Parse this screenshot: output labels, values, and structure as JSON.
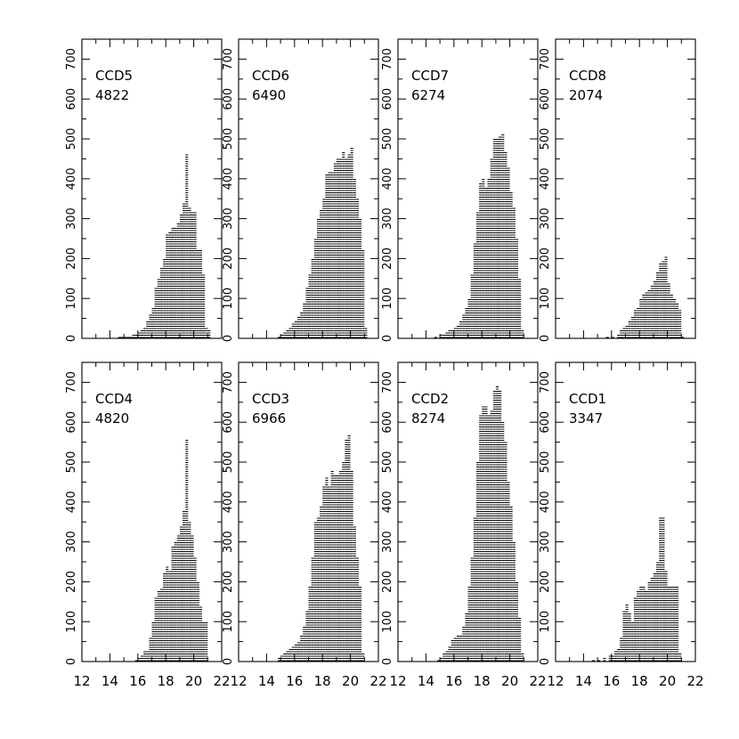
{
  "chart_data": {
    "type": "bar",
    "x_ticks": [
      12,
      14,
      16,
      18,
      20,
      22
    ],
    "y_ticks": [
      0,
      100,
      200,
      300,
      400,
      500,
      600,
      700
    ],
    "xlim": [
      12,
      22
    ],
    "ylim": [
      0,
      750
    ],
    "bin_width": 0.2,
    "panels": [
      {
        "name": "CCD5",
        "count": "4822",
        "bins": [
          [
            14.6,
            5
          ],
          [
            14.8,
            5
          ],
          [
            15.0,
            5
          ],
          [
            15.2,
            5
          ],
          [
            15.4,
            5
          ],
          [
            15.6,
            10
          ],
          [
            15.8,
            10
          ],
          [
            16.0,
            15
          ],
          [
            16.2,
            20
          ],
          [
            16.4,
            30
          ],
          [
            16.6,
            45
          ],
          [
            16.8,
            60
          ],
          [
            17.0,
            75
          ],
          [
            17.2,
            130
          ],
          [
            17.4,
            150
          ],
          [
            17.6,
            180
          ],
          [
            17.8,
            200
          ],
          [
            18.0,
            260
          ],
          [
            18.2,
            270
          ],
          [
            18.4,
            280
          ],
          [
            18.6,
            280
          ],
          [
            18.8,
            290
          ],
          [
            19.0,
            310
          ],
          [
            19.2,
            340
          ],
          [
            19.4,
            465
          ],
          [
            19.6,
            330
          ],
          [
            19.8,
            320
          ],
          [
            20.0,
            320
          ],
          [
            20.2,
            220
          ],
          [
            20.4,
            220
          ],
          [
            20.6,
            160
          ],
          [
            20.8,
            30
          ],
          [
            21.0,
            20
          ]
        ]
      },
      {
        "name": "CCD6",
        "count": "6490",
        "bins": [
          [
            14.8,
            5
          ],
          [
            15.0,
            10
          ],
          [
            15.2,
            15
          ],
          [
            15.4,
            20
          ],
          [
            15.6,
            25
          ],
          [
            15.8,
            40
          ],
          [
            16.0,
            45
          ],
          [
            16.2,
            55
          ],
          [
            16.4,
            65
          ],
          [
            16.6,
            90
          ],
          [
            16.8,
            130
          ],
          [
            17.0,
            160
          ],
          [
            17.2,
            200
          ],
          [
            17.4,
            250
          ],
          [
            17.6,
            300
          ],
          [
            17.8,
            325
          ],
          [
            18.0,
            350
          ],
          [
            18.2,
            410
          ],
          [
            18.4,
            420
          ],
          [
            18.6,
            420
          ],
          [
            18.8,
            440
          ],
          [
            19.0,
            450
          ],
          [
            19.2,
            450
          ],
          [
            19.4,
            470
          ],
          [
            19.6,
            450
          ],
          [
            19.8,
            460
          ],
          [
            20.0,
            480
          ],
          [
            20.2,
            400
          ],
          [
            20.4,
            350
          ],
          [
            20.6,
            300
          ],
          [
            20.8,
            220
          ],
          [
            21.0,
            30
          ]
        ]
      },
      {
        "name": "CCD7",
        "count": "6274",
        "bins": [
          [
            14.6,
            5
          ],
          [
            15.0,
            10
          ],
          [
            15.2,
            10
          ],
          [
            15.4,
            15
          ],
          [
            15.6,
            20
          ],
          [
            15.8,
            20
          ],
          [
            16.0,
            30
          ],
          [
            16.2,
            35
          ],
          [
            16.4,
            45
          ],
          [
            16.6,
            60
          ],
          [
            16.8,
            75
          ],
          [
            17.0,
            100
          ],
          [
            17.2,
            160
          ],
          [
            17.4,
            240
          ],
          [
            17.6,
            320
          ],
          [
            17.8,
            390
          ],
          [
            18.0,
            400
          ],
          [
            18.2,
            380
          ],
          [
            18.4,
            400
          ],
          [
            18.6,
            450
          ],
          [
            18.8,
            500
          ],
          [
            19.0,
            500
          ],
          [
            19.2,
            510
          ],
          [
            19.4,
            515
          ],
          [
            19.6,
            470
          ],
          [
            19.8,
            430
          ],
          [
            20.0,
            370
          ],
          [
            20.2,
            330
          ],
          [
            20.4,
            250
          ],
          [
            20.6,
            150
          ],
          [
            20.8,
            20
          ]
        ]
      },
      {
        "name": "CCD8",
        "count": "2074",
        "bins": [
          [
            15.6,
            5
          ],
          [
            16.0,
            5
          ],
          [
            16.4,
            10
          ],
          [
            16.6,
            20
          ],
          [
            16.8,
            25
          ],
          [
            17.0,
            35
          ],
          [
            17.2,
            45
          ],
          [
            17.4,
            55
          ],
          [
            17.6,
            70
          ],
          [
            17.8,
            80
          ],
          [
            18.0,
            100
          ],
          [
            18.2,
            110
          ],
          [
            18.4,
            115
          ],
          [
            18.6,
            120
          ],
          [
            18.8,
            135
          ],
          [
            19.0,
            145
          ],
          [
            19.2,
            165
          ],
          [
            19.4,
            190
          ],
          [
            19.6,
            195
          ],
          [
            19.8,
            205
          ],
          [
            20.0,
            140
          ],
          [
            20.2,
            110
          ],
          [
            20.4,
            100
          ],
          [
            20.6,
            90
          ],
          [
            20.8,
            70
          ],
          [
            21.0,
            5
          ]
        ]
      },
      {
        "name": "CCD4",
        "count": "4820",
        "bins": [
          [
            15.8,
            5
          ],
          [
            16.0,
            10
          ],
          [
            16.2,
            15
          ],
          [
            16.4,
            25
          ],
          [
            16.6,
            30
          ],
          [
            16.8,
            60
          ],
          [
            17.0,
            100
          ],
          [
            17.2,
            160
          ],
          [
            17.4,
            180
          ],
          [
            17.6,
            185
          ],
          [
            17.8,
            220
          ],
          [
            18.0,
            240
          ],
          [
            18.2,
            230
          ],
          [
            18.4,
            290
          ],
          [
            18.6,
            300
          ],
          [
            18.8,
            315
          ],
          [
            19.0,
            340
          ],
          [
            19.2,
            380
          ],
          [
            19.4,
            560
          ],
          [
            19.6,
            350
          ],
          [
            19.8,
            320
          ],
          [
            20.0,
            260
          ],
          [
            20.2,
            200
          ],
          [
            20.4,
            140
          ],
          [
            20.6,
            100
          ],
          [
            20.8,
            100
          ]
        ]
      },
      {
        "name": "CCD3",
        "count": "6966",
        "bins": [
          [
            14.8,
            10
          ],
          [
            15.0,
            15
          ],
          [
            15.2,
            20
          ],
          [
            15.4,
            30
          ],
          [
            15.6,
            35
          ],
          [
            15.8,
            40
          ],
          [
            16.0,
            45
          ],
          [
            16.2,
            50
          ],
          [
            16.4,
            65
          ],
          [
            16.6,
            90
          ],
          [
            16.8,
            130
          ],
          [
            17.0,
            190
          ],
          [
            17.2,
            260
          ],
          [
            17.4,
            350
          ],
          [
            17.6,
            360
          ],
          [
            17.8,
            390
          ],
          [
            18.0,
            440
          ],
          [
            18.2,
            460
          ],
          [
            18.4,
            440
          ],
          [
            18.6,
            480
          ],
          [
            18.8,
            470
          ],
          [
            19.0,
            470
          ],
          [
            19.2,
            480
          ],
          [
            19.4,
            500
          ],
          [
            19.6,
            560
          ],
          [
            19.8,
            570
          ],
          [
            20.0,
            480
          ],
          [
            20.2,
            340
          ],
          [
            20.4,
            260
          ],
          [
            20.6,
            190
          ],
          [
            20.8,
            20
          ]
        ]
      },
      {
        "name": "CCD2",
        "count": "8274",
        "bins": [
          [
            14.8,
            5
          ],
          [
            15.0,
            10
          ],
          [
            15.2,
            20
          ],
          [
            15.4,
            30
          ],
          [
            15.6,
            40
          ],
          [
            15.8,
            55
          ],
          [
            16.0,
            60
          ],
          [
            16.2,
            65
          ],
          [
            16.4,
            65
          ],
          [
            16.6,
            90
          ],
          [
            16.8,
            120
          ],
          [
            17.0,
            190
          ],
          [
            17.2,
            260
          ],
          [
            17.4,
            360
          ],
          [
            17.6,
            500
          ],
          [
            17.8,
            620
          ],
          [
            18.0,
            640
          ],
          [
            18.2,
            640
          ],
          [
            18.4,
            620
          ],
          [
            18.6,
            630
          ],
          [
            18.8,
            680
          ],
          [
            19.0,
            690
          ],
          [
            19.2,
            680
          ],
          [
            19.4,
            600
          ],
          [
            19.6,
            550
          ],
          [
            19.8,
            450
          ],
          [
            20.0,
            390
          ],
          [
            20.2,
            300
          ],
          [
            20.4,
            200
          ],
          [
            20.6,
            110
          ],
          [
            20.8,
            20
          ]
        ]
      },
      {
        "name": "CCD1",
        "count": "3347",
        "bins": [
          [
            14.6,
            5
          ],
          [
            15.0,
            5
          ],
          [
            15.4,
            10
          ],
          [
            15.8,
            15
          ],
          [
            16.0,
            15
          ],
          [
            16.2,
            25
          ],
          [
            16.4,
            35
          ],
          [
            16.6,
            60
          ],
          [
            16.8,
            130
          ],
          [
            17.0,
            145
          ],
          [
            17.2,
            120
          ],
          [
            17.4,
            100
          ],
          [
            17.6,
            160
          ],
          [
            17.8,
            180
          ],
          [
            18.0,
            190
          ],
          [
            18.2,
            190
          ],
          [
            18.4,
            180
          ],
          [
            18.6,
            200
          ],
          [
            18.8,
            210
          ],
          [
            19.0,
            220
          ],
          [
            19.2,
            250
          ],
          [
            19.4,
            360
          ],
          [
            19.6,
            360
          ],
          [
            19.8,
            230
          ],
          [
            20.0,
            190
          ],
          [
            20.2,
            190
          ],
          [
            20.4,
            190
          ],
          [
            20.6,
            190
          ],
          [
            20.8,
            20
          ]
        ]
      }
    ]
  }
}
